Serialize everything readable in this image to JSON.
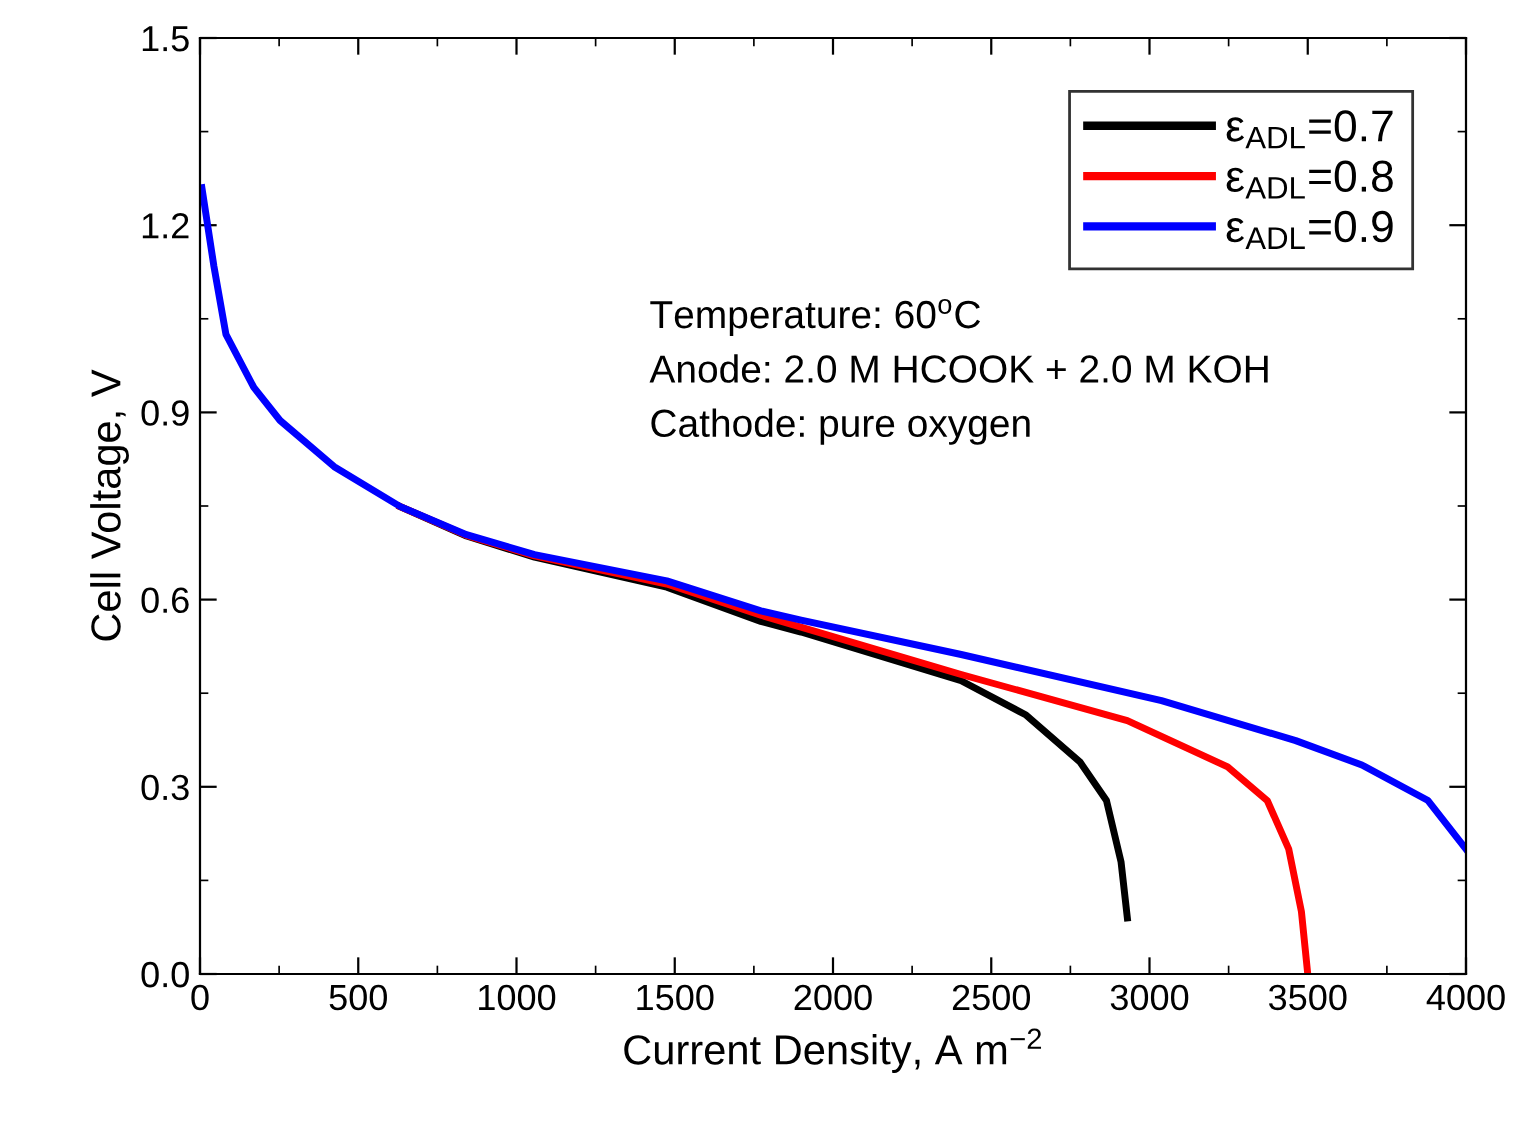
{
  "chart_data": {
    "type": "line",
    "xlabel": "Current Density, A m$^{−2}$",
    "ylabel": "Cell Voltage, V",
    "xlim": [
      0,
      4000
    ],
    "xticks": [
      0,
      500,
      1000,
      1500,
      2000,
      2500,
      3000,
      3500,
      4000
    ],
    "ylim": [
      0.0,
      1.5
    ],
    "yticks": [
      {
        "value": 0.0,
        "label": "0.0"
      },
      0.3,
      0.6,
      0.9,
      1.2,
      1.5
    ],
    "legend": "top right",
    "grid": false,
    "line_style": "solid",
    "marker": "none",
    "annotations": [
      "Temperature: 60$^{o}$C",
      "Anode: 2.0 M HCOOK + 2.0 M KOH",
      "Cathode: pure oxygen"
    ],
    "series": [
      {
        "name": "ε$_{ADL}$=0.7",
        "color": "#000000",
        "x": [
          633,
          842,
          1057,
          1475,
          1772,
          1899,
          2405,
          2610,
          2780,
          2864,
          2910,
          2930
        ],
        "values": [
          0.749,
          0.702,
          0.668,
          0.62,
          0.565,
          0.548,
          0.47,
          0.415,
          0.34,
          0.278,
          0.18,
          0.09
        ]
      },
      {
        "name": "ε$_{ADL}$=0.8",
        "color": "#ff0000",
        "x": [
          633,
          842,
          1057,
          1475,
          1772,
          2405,
          2930,
          3247,
          3372,
          3440,
          3480,
          3500
        ],
        "values": [
          0.749,
          0.703,
          0.67,
          0.625,
          0.575,
          0.48,
          0.406,
          0.332,
          0.278,
          0.2,
          0.1,
          0.0
        ]
      },
      {
        "name": "ε$_{ADL}$=0.9",
        "color": "#0000ff",
        "x": [
          6,
          44,
          82,
          170,
          253,
          424,
          633,
          842,
          1057,
          1475,
          1772,
          1899,
          2405,
          3038,
          3462,
          3671,
          3880,
          4000
        ],
        "values": [
          1.26,
          1.134,
          1.025,
          0.94,
          0.887,
          0.813,
          0.749,
          0.704,
          0.672,
          0.63,
          0.582,
          0.567,
          0.512,
          0.438,
          0.374,
          0.335,
          0.278,
          0.2
        ]
      }
    ]
  }
}
